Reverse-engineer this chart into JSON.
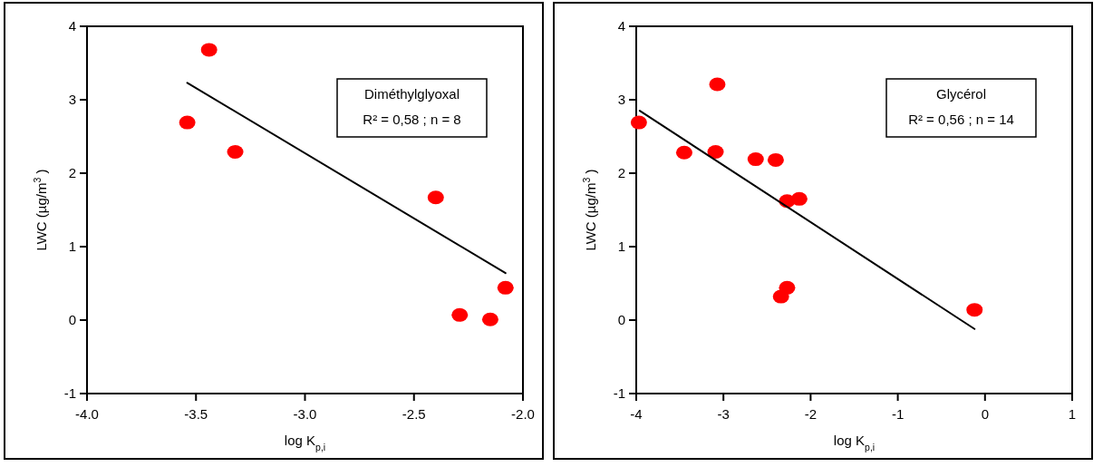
{
  "chart_data": [
    {
      "type": "scatter",
      "xlabel": "log K$_{p,i}$",
      "ylabel": "LWC (µg/m$^{3}$)",
      "annotations": [
        "Diméthylglyoxal",
        "R² = 0,58 ; n = 8"
      ],
      "xlim": [
        -4.0,
        -2.0
      ],
      "ylim": [
        -1,
        4
      ],
      "xticks": [
        {
          "value": -4.0,
          "label": "-4.0"
        },
        {
          "value": -3.5,
          "label": "-3.5"
        },
        {
          "value": -3.0,
          "label": "-3.0"
        },
        {
          "value": -2.5,
          "label": "-2.5"
        },
        {
          "value": -2.0,
          "label": "-2.0"
        }
      ],
      "yticks": [
        -1,
        0,
        1,
        2,
        3,
        4
      ],
      "grid": false,
      "series": [
        {
          "color": "#ff0000",
          "marker": "circle",
          "x": [
            -3.54,
            -3.44,
            -3.32,
            -2.4,
            -2.29,
            -2.15,
            -2.08
          ],
          "values": [
            2.69,
            3.68,
            2.29,
            1.67,
            0.07,
            0.01,
            0.44
          ]
        },
        {
          "type": "line",
          "color": "#000000",
          "marker": "none",
          "x": [
            -3.54,
            -2.08
          ],
          "values": [
            3.23,
            0.64
          ]
        }
      ]
    },
    {
      "type": "scatter",
      "xlabel": "log K$_{p,i}$",
      "ylabel": "LWC (µg/m$^{3}$)",
      "annotations": [
        "Glycérol",
        "R² = 0,56 ; n = 14"
      ],
      "xlim": [
        -4,
        1
      ],
      "ylim": [
        -1,
        4
      ],
      "xticks": [
        -4,
        -3,
        -2,
        -1,
        0,
        1
      ],
      "yticks": [
        -1,
        0,
        1,
        2,
        3,
        4
      ],
      "grid": false,
      "series": [
        {
          "color": "#ff0000",
          "marker": "circle",
          "x": [
            -3.97,
            -3.45,
            -3.07,
            -3.09,
            -2.63,
            -2.4,
            -2.27,
            -2.13,
            -2.27,
            -2.34,
            -0.12
          ],
          "values": [
            2.69,
            2.28,
            3.21,
            2.29,
            2.19,
            2.18,
            1.62,
            1.65,
            0.44,
            0.32,
            0.14
          ]
        },
        {
          "type": "line",
          "color": "#000000",
          "marker": "none",
          "x": [
            -3.96,
            -0.12
          ],
          "values": [
            2.85,
            -0.12
          ]
        }
      ]
    }
  ]
}
